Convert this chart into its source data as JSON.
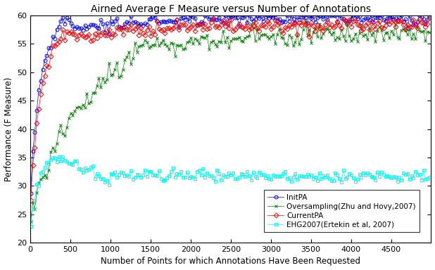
{
  "title": "Airned Average F Measure versus Number of Annotations",
  "xlabel": "Number of Points for which Annotations Have Been Requested",
  "ylabel": "Performance (F Measure)",
  "xlim": [
    0,
    5000
  ],
  "ylim": [
    20,
    60
  ],
  "yticks": [
    20,
    25,
    30,
    35,
    40,
    45,
    50,
    55,
    60
  ],
  "xticks": [
    0,
    500,
    1000,
    1500,
    2000,
    2500,
    3000,
    3500,
    4000,
    4500
  ],
  "legend_labels": [
    "InitPA",
    "Oversampling(Zhu and Hovy,2007)",
    "CurrentPA",
    "EHG2007(Ertekin et al, 2007)"
  ],
  "colors": [
    "blue",
    "green",
    "red",
    "cyan"
  ],
  "markers": [
    "o",
    "x",
    "D",
    "s"
  ],
  "background_color": "white",
  "title_fontsize": 10,
  "label_fontsize": 8.5,
  "tick_fontsize": 8,
  "legend_fontsize": 7.5
}
